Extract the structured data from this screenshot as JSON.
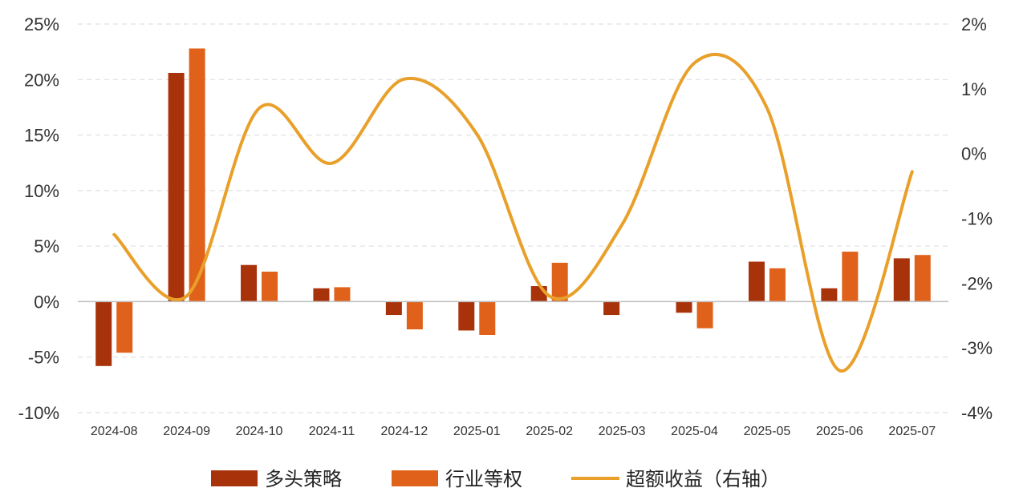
{
  "chart_data": {
    "type": "bar",
    "categories": [
      "2024-08",
      "2024-09",
      "2024-10",
      "2024-11",
      "2024-12",
      "2025-01",
      "2025-02",
      "2025-03",
      "2025-04",
      "2025-05",
      "2025-06",
      "2025-07"
    ],
    "series": [
      {
        "name": "多头策略",
        "type": "bar",
        "axis": "left",
        "color": "#a8320a",
        "values": [
          -5.8,
          20.6,
          3.3,
          1.2,
          -1.2,
          -2.6,
          1.4,
          -1.2,
          -1.0,
          3.6,
          1.2,
          3.9
        ]
      },
      {
        "name": "行业等权",
        "type": "bar",
        "axis": "left",
        "color": "#e0621a",
        "values": [
          -4.6,
          22.8,
          2.7,
          1.3,
          -2.5,
          -3.0,
          3.5,
          0.0,
          -2.4,
          3.0,
          4.5,
          4.2
        ]
      },
      {
        "name": "超额收益（右轴）",
        "type": "line",
        "axis": "right",
        "color": "#e9a02a",
        "values": [
          -1.25,
          -2.2,
          0.7,
          -0.15,
          1.15,
          0.3,
          -2.2,
          -1.1,
          1.4,
          0.7,
          -3.35,
          -0.28
        ]
      }
    ],
    "y_left": {
      "min": -10,
      "max": 25,
      "step": 5,
      "ticks": [
        "-10%",
        "-5%",
        "0%",
        "5%",
        "10%",
        "15%",
        "20%",
        "25%"
      ]
    },
    "y_right": {
      "min": -4,
      "max": 2,
      "step": 1,
      "ticks": [
        "-4%",
        "-3%",
        "-2%",
        "-1%",
        "0%",
        "1%",
        "2%"
      ]
    },
    "grid": true,
    "legend_position": "bottom"
  },
  "legend": [
    {
      "label": "多头策略",
      "kind": "bar",
      "color": "#a8320a"
    },
    {
      "label": "行业等权",
      "kind": "bar",
      "color": "#e0621a"
    },
    {
      "label": "超额收益（右轴）",
      "kind": "line",
      "color": "#e9a02a"
    }
  ]
}
